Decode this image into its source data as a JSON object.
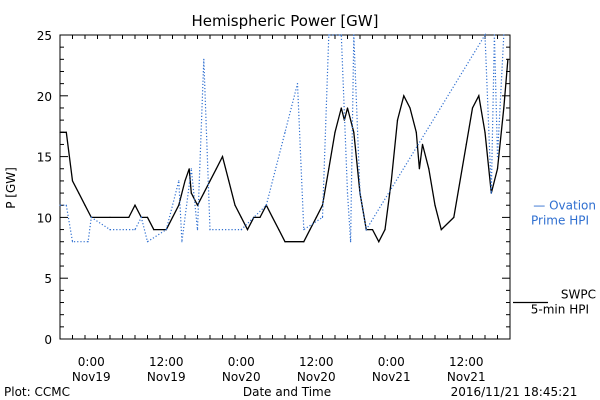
{
  "colors": {
    "swpc": "#000000",
    "ovation": "#2f6fd0",
    "axis": "#000000",
    "background": "#ffffff"
  },
  "footer": {
    "left": "Plot: CCMC",
    "center": "Date and Time",
    "right": "2016/11/21 18:45:21"
  },
  "chart_data": {
    "type": "line",
    "title": "Hemispheric Power [GW]",
    "xlabel": "Date and Time",
    "ylabel": "P [GW]",
    "xlim": [
      "2016-11-18 19:00",
      "2016-11-21 19:00"
    ],
    "ylim": [
      0,
      25
    ],
    "grid": false,
    "y_ticks": [
      0,
      5,
      10,
      15,
      20,
      25
    ],
    "x_ticks": [
      {
        "time": "2016-11-19 00:00",
        "label1": "0:00",
        "label2": "Nov19"
      },
      {
        "time": "2016-11-19 12:00",
        "label1": "12:00",
        "label2": "Nov19"
      },
      {
        "time": "2016-11-20 00:00",
        "label1": "0:00",
        "label2": "Nov20"
      },
      {
        "time": "2016-11-20 12:00",
        "label1": "12:00",
        "label2": "Nov20"
      },
      {
        "time": "2016-11-21 00:00",
        "label1": "0:00",
        "label2": "Nov21"
      },
      {
        "time": "2016-11-21 12:00",
        "label1": "12:00",
        "label2": "Nov21"
      }
    ],
    "series": [
      {
        "name": "SWPC 5-min HPI",
        "legend_lines": [
          "SWPC",
          "5-min HPI"
        ],
        "style": "solid",
        "legend_value": 3,
        "points": [
          [
            "2016-11-18 19:00",
            17
          ],
          [
            "2016-11-18 20:00",
            17
          ],
          [
            "2016-11-18 21:00",
            13
          ],
          [
            "2016-11-18 22:00",
            12
          ],
          [
            "2016-11-18 23:00",
            11
          ],
          [
            "2016-11-19 00:00",
            10
          ],
          [
            "2016-11-19 03:00",
            10
          ],
          [
            "2016-11-19 06:00",
            10
          ],
          [
            "2016-11-19 07:00",
            11
          ],
          [
            "2016-11-19 08:00",
            10
          ],
          [
            "2016-11-19 09:00",
            10
          ],
          [
            "2016-11-19 10:00",
            9
          ],
          [
            "2016-11-19 12:00",
            9
          ],
          [
            "2016-11-19 13:00",
            10
          ],
          [
            "2016-11-19 14:00",
            11
          ],
          [
            "2016-11-19 15:00",
            13
          ],
          [
            "2016-11-19 15:40",
            14
          ],
          [
            "2016-11-19 16:00",
            12
          ],
          [
            "2016-11-19 17:00",
            11
          ],
          [
            "2016-11-19 18:00",
            12
          ],
          [
            "2016-11-19 19:00",
            13
          ],
          [
            "2016-11-19 20:00",
            14
          ],
          [
            "2016-11-19 21:00",
            15
          ],
          [
            "2016-11-19 22:00",
            13
          ],
          [
            "2016-11-19 23:00",
            11
          ],
          [
            "2016-11-20 00:00",
            10
          ],
          [
            "2016-11-20 01:00",
            9
          ],
          [
            "2016-11-20 02:00",
            10
          ],
          [
            "2016-11-20 03:00",
            10
          ],
          [
            "2016-11-20 04:00",
            11
          ],
          [
            "2016-11-20 05:00",
            10
          ],
          [
            "2016-11-20 06:00",
            9
          ],
          [
            "2016-11-20 07:00",
            8
          ],
          [
            "2016-11-20 10:00",
            8
          ],
          [
            "2016-11-20 11:00",
            9
          ],
          [
            "2016-11-20 12:00",
            10
          ],
          [
            "2016-11-20 13:00",
            11
          ],
          [
            "2016-11-20 14:00",
            14
          ],
          [
            "2016-11-20 15:00",
            17
          ],
          [
            "2016-11-20 16:00",
            19
          ],
          [
            "2016-11-20 16:30",
            18
          ],
          [
            "2016-11-20 17:00",
            19
          ],
          [
            "2016-11-20 18:00",
            17
          ],
          [
            "2016-11-20 19:00",
            12
          ],
          [
            "2016-11-20 20:00",
            9
          ],
          [
            "2016-11-20 21:00",
            9
          ],
          [
            "2016-11-20 22:00",
            8
          ],
          [
            "2016-11-20 23:00",
            9
          ],
          [
            "2016-11-21 00:00",
            13
          ],
          [
            "2016-11-21 01:00",
            18
          ],
          [
            "2016-11-21 02:00",
            20
          ],
          [
            "2016-11-21 03:00",
            19
          ],
          [
            "2016-11-21 04:00",
            17
          ],
          [
            "2016-11-21 04:30",
            14
          ],
          [
            "2016-11-21 05:00",
            16
          ],
          [
            "2016-11-21 06:00",
            14
          ],
          [
            "2016-11-21 07:00",
            11
          ],
          [
            "2016-11-21 08:00",
            9
          ],
          [
            "2016-11-21 10:00",
            10
          ],
          [
            "2016-11-21 12:00",
            16
          ],
          [
            "2016-11-21 13:00",
            19
          ],
          [
            "2016-11-21 14:00",
            20
          ],
          [
            "2016-11-21 15:00",
            17
          ],
          [
            "2016-11-21 16:00",
            12
          ],
          [
            "2016-11-21 17:00",
            14
          ],
          [
            "2016-11-21 18:00",
            19
          ],
          [
            "2016-11-21 18:40",
            23
          ]
        ]
      },
      {
        "name": "Ovation Prime HPI",
        "legend_lines": [
          "— Ovation",
          "Prime HPI"
        ],
        "style": "dotted",
        "legend_value": 10.5,
        "points": [
          [
            "2016-11-18 19:00",
            11
          ],
          [
            "2016-11-18 20:00",
            11
          ],
          [
            "2016-11-18 21:00",
            8
          ],
          [
            "2016-11-18 23:30",
            8
          ],
          [
            "2016-11-19 00:00",
            10
          ],
          [
            "2016-11-19 03:00",
            9
          ],
          [
            "2016-11-19 07:00",
            9
          ],
          [
            "2016-11-19 08:00",
            10
          ],
          [
            "2016-11-19 09:00",
            8
          ],
          [
            "2016-11-19 12:00",
            9
          ],
          [
            "2016-11-19 14:00",
            13
          ],
          [
            "2016-11-19 14:30",
            8
          ],
          [
            "2016-11-19 16:00",
            14
          ],
          [
            "2016-11-19 17:00",
            9
          ],
          [
            "2016-11-19 18:00",
            23
          ],
          [
            "2016-11-19 19:00",
            9
          ],
          [
            "2016-11-20 00:00",
            9
          ],
          [
            "2016-11-20 04:00",
            11
          ],
          [
            "2016-11-20 07:00",
            17
          ],
          [
            "2016-11-20 09:00",
            21
          ],
          [
            "2016-11-20 10:00",
            9
          ],
          [
            "2016-11-20 13:00",
            10
          ],
          [
            "2016-11-20 14:00",
            25
          ],
          [
            "2016-11-20 16:00",
            25
          ],
          [
            "2016-11-20 17:00",
            12
          ],
          [
            "2016-11-20 17:30",
            8
          ],
          [
            "2016-11-20 18:00",
            25
          ],
          [
            "2016-11-20 19:00",
            12
          ],
          [
            "2016-11-20 20:00",
            9
          ],
          [
            "2016-11-21 15:00",
            25
          ],
          [
            "2016-11-21 16:00",
            12
          ],
          [
            "2016-11-21 16:30",
            25
          ],
          [
            "2016-11-21 17:00",
            15
          ],
          [
            "2016-11-21 18:00",
            25
          ]
        ]
      }
    ]
  }
}
